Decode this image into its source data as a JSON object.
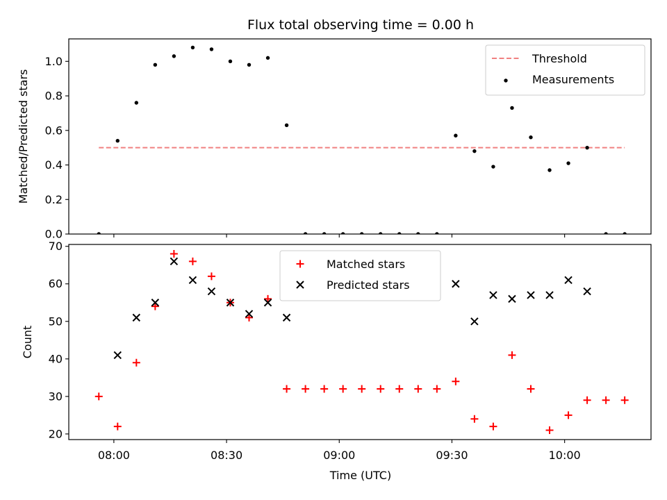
{
  "figure": {
    "title": "Flux total observing time = 0.00 h",
    "xlabel": "Time (UTC)"
  },
  "chart_data": [
    {
      "type": "scatter",
      "ylabel": "Matched/Predicted stars",
      "xlim": [
        "07:48",
        "10:23"
      ],
      "ylim": [
        0,
        1.13
      ],
      "yticks": [
        "0.0",
        "0.2",
        "0.4",
        "0.6",
        "0.8",
        "1.0"
      ],
      "legend_position": "top-right",
      "threshold": {
        "name": "Threshold",
        "value": 0.5,
        "x_start": "07:56",
        "x_end": "10:16",
        "color": "#f08080",
        "style": "dashed"
      },
      "series": [
        {
          "name": "Measurements",
          "color": "#000000",
          "marker": "dot",
          "x": [
            "07:56",
            "08:01",
            "08:06",
            "08:11",
            "08:16",
            "08:21",
            "08:26",
            "08:31",
            "08:36",
            "08:41",
            "08:46",
            "08:51",
            "08:56",
            "09:01",
            "09:06",
            "09:11",
            "09:16",
            "09:21",
            "09:26",
            "09:31",
            "09:36",
            "09:41",
            "09:46",
            "09:51",
            "09:56",
            "10:01",
            "10:06",
            "10:11",
            "10:16"
          ],
          "y": [
            0.0,
            0.54,
            0.76,
            0.98,
            1.03,
            1.08,
            1.07,
            1.0,
            0.98,
            1.02,
            0.63,
            0.0,
            0.0,
            0.0,
            0.0,
            0.0,
            0.0,
            0.0,
            0.0,
            0.57,
            0.48,
            0.39,
            0.73,
            0.56,
            0.37,
            0.41,
            0.5,
            0.0,
            0.0
          ]
        }
      ]
    },
    {
      "type": "scatter",
      "ylabel": "Count",
      "xlim": [
        "07:48",
        "10:23"
      ],
      "ylim": [
        18.5,
        70.5
      ],
      "yticks": [
        "20",
        "30",
        "40",
        "50",
        "60",
        "70"
      ],
      "xticks": [
        "08:00",
        "08:30",
        "09:00",
        "09:30",
        "10:00"
      ],
      "legend_position": "top-center",
      "series": [
        {
          "name": "Matched stars",
          "color": "#ff0000",
          "marker": "plus",
          "x": [
            "07:56",
            "08:01",
            "08:06",
            "08:11",
            "08:16",
            "08:21",
            "08:26",
            "08:31",
            "08:36",
            "08:41",
            "08:46",
            "08:51",
            "08:56",
            "09:01",
            "09:06",
            "09:11",
            "09:16",
            "09:21",
            "09:26",
            "09:31",
            "09:36",
            "09:41",
            "09:46",
            "09:51",
            "09:56",
            "10:01",
            "10:06",
            "10:11",
            "10:16"
          ],
          "y": [
            30,
            22,
            39,
            54,
            68,
            66,
            62,
            55,
            51,
            56,
            32,
            32,
            32,
            32,
            32,
            32,
            32,
            32,
            32,
            34,
            24,
            22,
            41,
            32,
            21,
            25,
            29,
            29,
            29
          ]
        },
        {
          "name": "Predicted stars",
          "color": "#000000",
          "marker": "x",
          "x": [
            "08:01",
            "08:06",
            "08:11",
            "08:16",
            "08:21",
            "08:26",
            "08:31",
            "08:36",
            "08:41",
            "08:46",
            "09:31",
            "09:36",
            "09:41",
            "09:46",
            "09:51",
            "09:56",
            "10:01",
            "10:06"
          ],
          "y": [
            41,
            51,
            55,
            66,
            61,
            58,
            55,
            52,
            55,
            51,
            60,
            50,
            57,
            56,
            57,
            57,
            61,
            58
          ]
        }
      ]
    }
  ]
}
